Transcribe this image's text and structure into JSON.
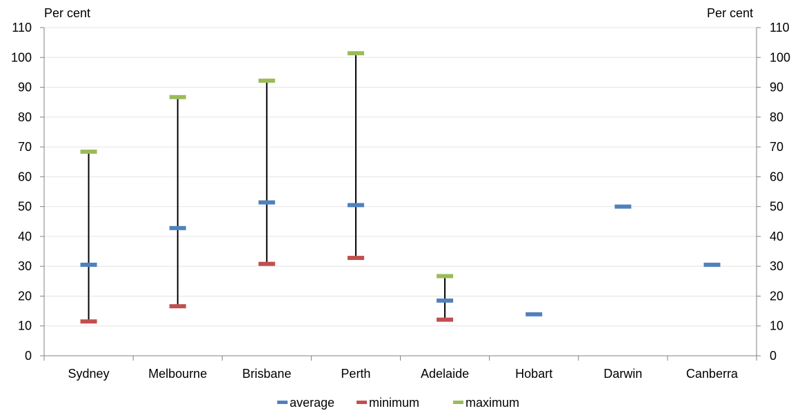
{
  "chart_data": {
    "type": "range",
    "title": "",
    "ylabel_left": "Per cent",
    "ylabel_right": "Per cent",
    "ylim": [
      0,
      110
    ],
    "yticks": [
      0,
      10,
      20,
      30,
      40,
      50,
      60,
      70,
      80,
      90,
      100,
      110
    ],
    "grid": true,
    "legend_placement": "bottom-center",
    "categories": [
      "Sydney",
      "Melbourne",
      "Brisbane",
      "Perth",
      "Adelaide",
      "Hobart",
      "Darwin",
      "Canberra"
    ],
    "series": [
      {
        "name": "average",
        "color": "#4f81bd",
        "values": [
          30.5,
          42.8,
          51.4,
          50.5,
          18.5,
          13.9,
          50.0,
          30.5
        ]
      },
      {
        "name": "minimum",
        "color": "#c0504d",
        "values": [
          11.5,
          16.6,
          30.8,
          32.8,
          12.1,
          null,
          null,
          null
        ]
      },
      {
        "name": "maximum",
        "color": "#9bbb59",
        "values": [
          68.4,
          86.7,
          92.2,
          101.4,
          26.7,
          null,
          null,
          null
        ]
      }
    ],
    "range_line_color": "#000000"
  }
}
